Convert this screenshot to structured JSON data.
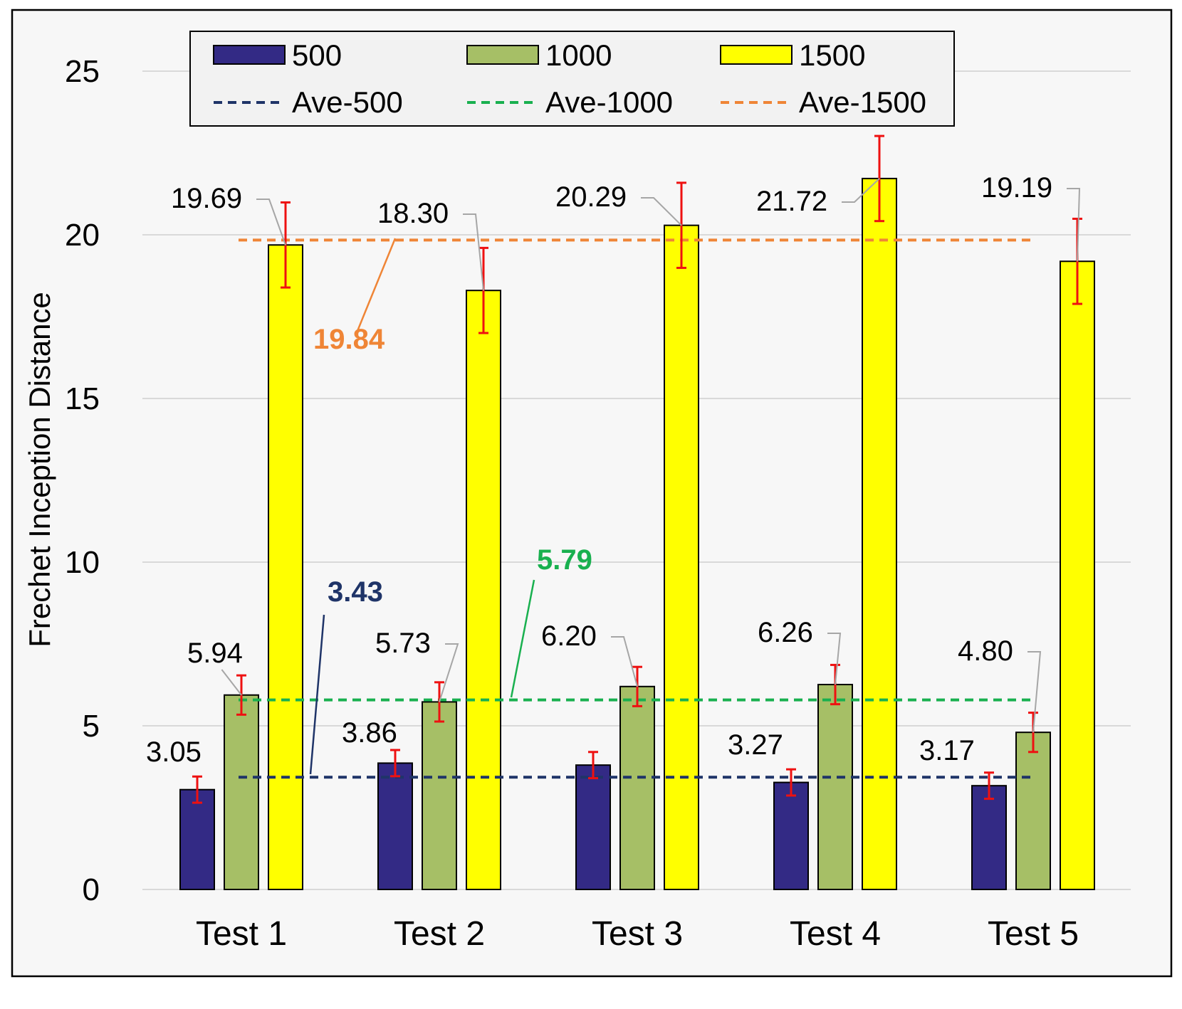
{
  "chart_data": {
    "type": "bar",
    "title": "",
    "xlabel": "",
    "ylabel": "Frechet Inception Distance",
    "ylim": [
      0,
      25
    ],
    "yticks": [
      "0",
      "5",
      "10",
      "15",
      "20",
      "25"
    ],
    "grid": true,
    "legend_position": "top",
    "categories": [
      "Test 1",
      "Test 2",
      "Test 3",
      "Test 4",
      "Test 5"
    ],
    "series": [
      {
        "name": "500",
        "color": "#332a85",
        "values": [
          3.05,
          3.86,
          3.8,
          3.27,
          3.17
        ],
        "labels": [
          "3.05",
          "3.86",
          "",
          "3.27",
          "3.17"
        ],
        "errors": [
          0.4,
          0.4,
          0.4,
          0.4,
          0.4
        ]
      },
      {
        "name": "1000",
        "color": "#a6bf66",
        "values": [
          5.94,
          5.73,
          6.2,
          6.26,
          4.8
        ],
        "labels": [
          "5.94",
          "5.73",
          "6.20",
          "6.26",
          "4.80"
        ],
        "errors": [
          0.6,
          0.6,
          0.6,
          0.6,
          0.6
        ]
      },
      {
        "name": "1500",
        "color": "#ffff00",
        "values": [
          19.69,
          18.3,
          20.29,
          21.72,
          19.19
        ],
        "labels": [
          "19.69",
          "18.30",
          "20.29",
          "21.72",
          "19.19"
        ],
        "errors": [
          1.3,
          1.3,
          1.3,
          1.3,
          1.3
        ]
      }
    ],
    "averages": [
      {
        "name": "Ave-500",
        "value": 3.43,
        "label": "3.43",
        "color": "#1f3468"
      },
      {
        "name": "Ave-1000",
        "value": 5.79,
        "label": "5.79",
        "color": "#19b04f"
      },
      {
        "name": "Ave-1500",
        "value": 19.84,
        "label": "19.84",
        "color": "#ef8536"
      }
    ],
    "errorbar_color": "#ee1111"
  }
}
